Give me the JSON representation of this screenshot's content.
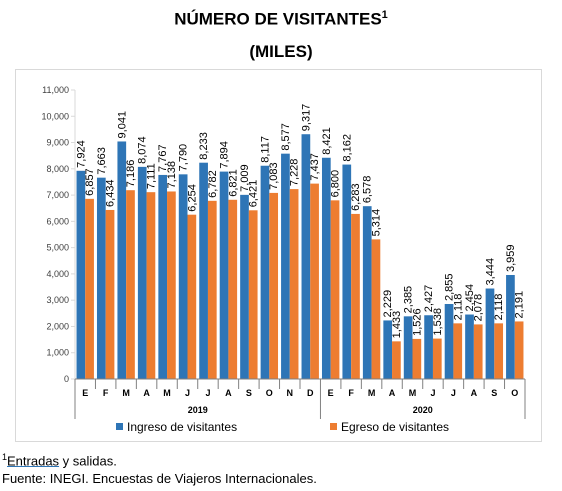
{
  "title": "NÚMERO DE VISITANTES",
  "title_sup": "1",
  "subtitle": "(MILES)",
  "footnote": {
    "sup": "1",
    "word": "Entradas",
    "rest": " y salidas."
  },
  "source": "Fuente: INEGI. Encuestas de Viajeros Internacionales.",
  "colors": {
    "ingreso": "#2e75b6",
    "egreso": "#ed7d31",
    "axis": "#808080",
    "grid": "#d9d9d9"
  },
  "chart_data": {
    "type": "bar",
    "ylim": [
      0,
      11000
    ],
    "yticks": [
      "0",
      "1,000",
      "2,000",
      "3,000",
      "4,000",
      "5,000",
      "6,000",
      "7,000",
      "8,000",
      "9,000",
      "10,000",
      "11,000"
    ],
    "categories": [
      "E",
      "F",
      "M",
      "A",
      "M",
      "J",
      "J",
      "A",
      "S",
      "O",
      "N",
      "D",
      "E",
      "F",
      "M",
      "A",
      "M",
      "J",
      "J",
      "A",
      "S",
      "O"
    ],
    "years": [
      {
        "label": "2019",
        "count": 12
      },
      {
        "label": "2020",
        "count": 10
      }
    ],
    "series": [
      {
        "name": "Ingreso de visitantes",
        "values": [
          7924,
          7663,
          9041,
          8074,
          7767,
          7790,
          8233,
          7894,
          7009,
          8117,
          8577,
          9317,
          8421,
          8162,
          6578,
          2229,
          2385,
          2427,
          2855,
          2454,
          3444,
          3959
        ],
        "labels": [
          "7,924",
          "7,663",
          "9,041",
          "8,074",
          "7,767",
          "7,790",
          "8,233",
          "7,894",
          "7,009",
          "8,117",
          "8,577",
          "9,317",
          "8,421",
          "8,162",
          "6,578",
          "2,229",
          "2,385",
          "2,427",
          "2,855",
          "2,454",
          "3,444",
          "3,959"
        ]
      },
      {
        "name": "Egreso de visitantes",
        "values": [
          6857,
          6434,
          7186,
          7111,
          7138,
          6254,
          6782,
          6821,
          6421,
          7083,
          7228,
          7437,
          6800,
          6283,
          5314,
          1433,
          1526,
          1538,
          2118,
          2078,
          2118,
          2191
        ],
        "labels": [
          "6,857",
          "6,434",
          "7,186",
          "7,111",
          "7,138",
          "6,254",
          "6,782",
          "6,821",
          "6,421",
          "7,083",
          "7,228",
          "7,437",
          "6,800",
          "6,283",
          "5,314",
          "1,433",
          "1,526",
          "1,538",
          "2,118",
          "2,078",
          "2,118",
          "2,191"
        ]
      }
    ]
  }
}
